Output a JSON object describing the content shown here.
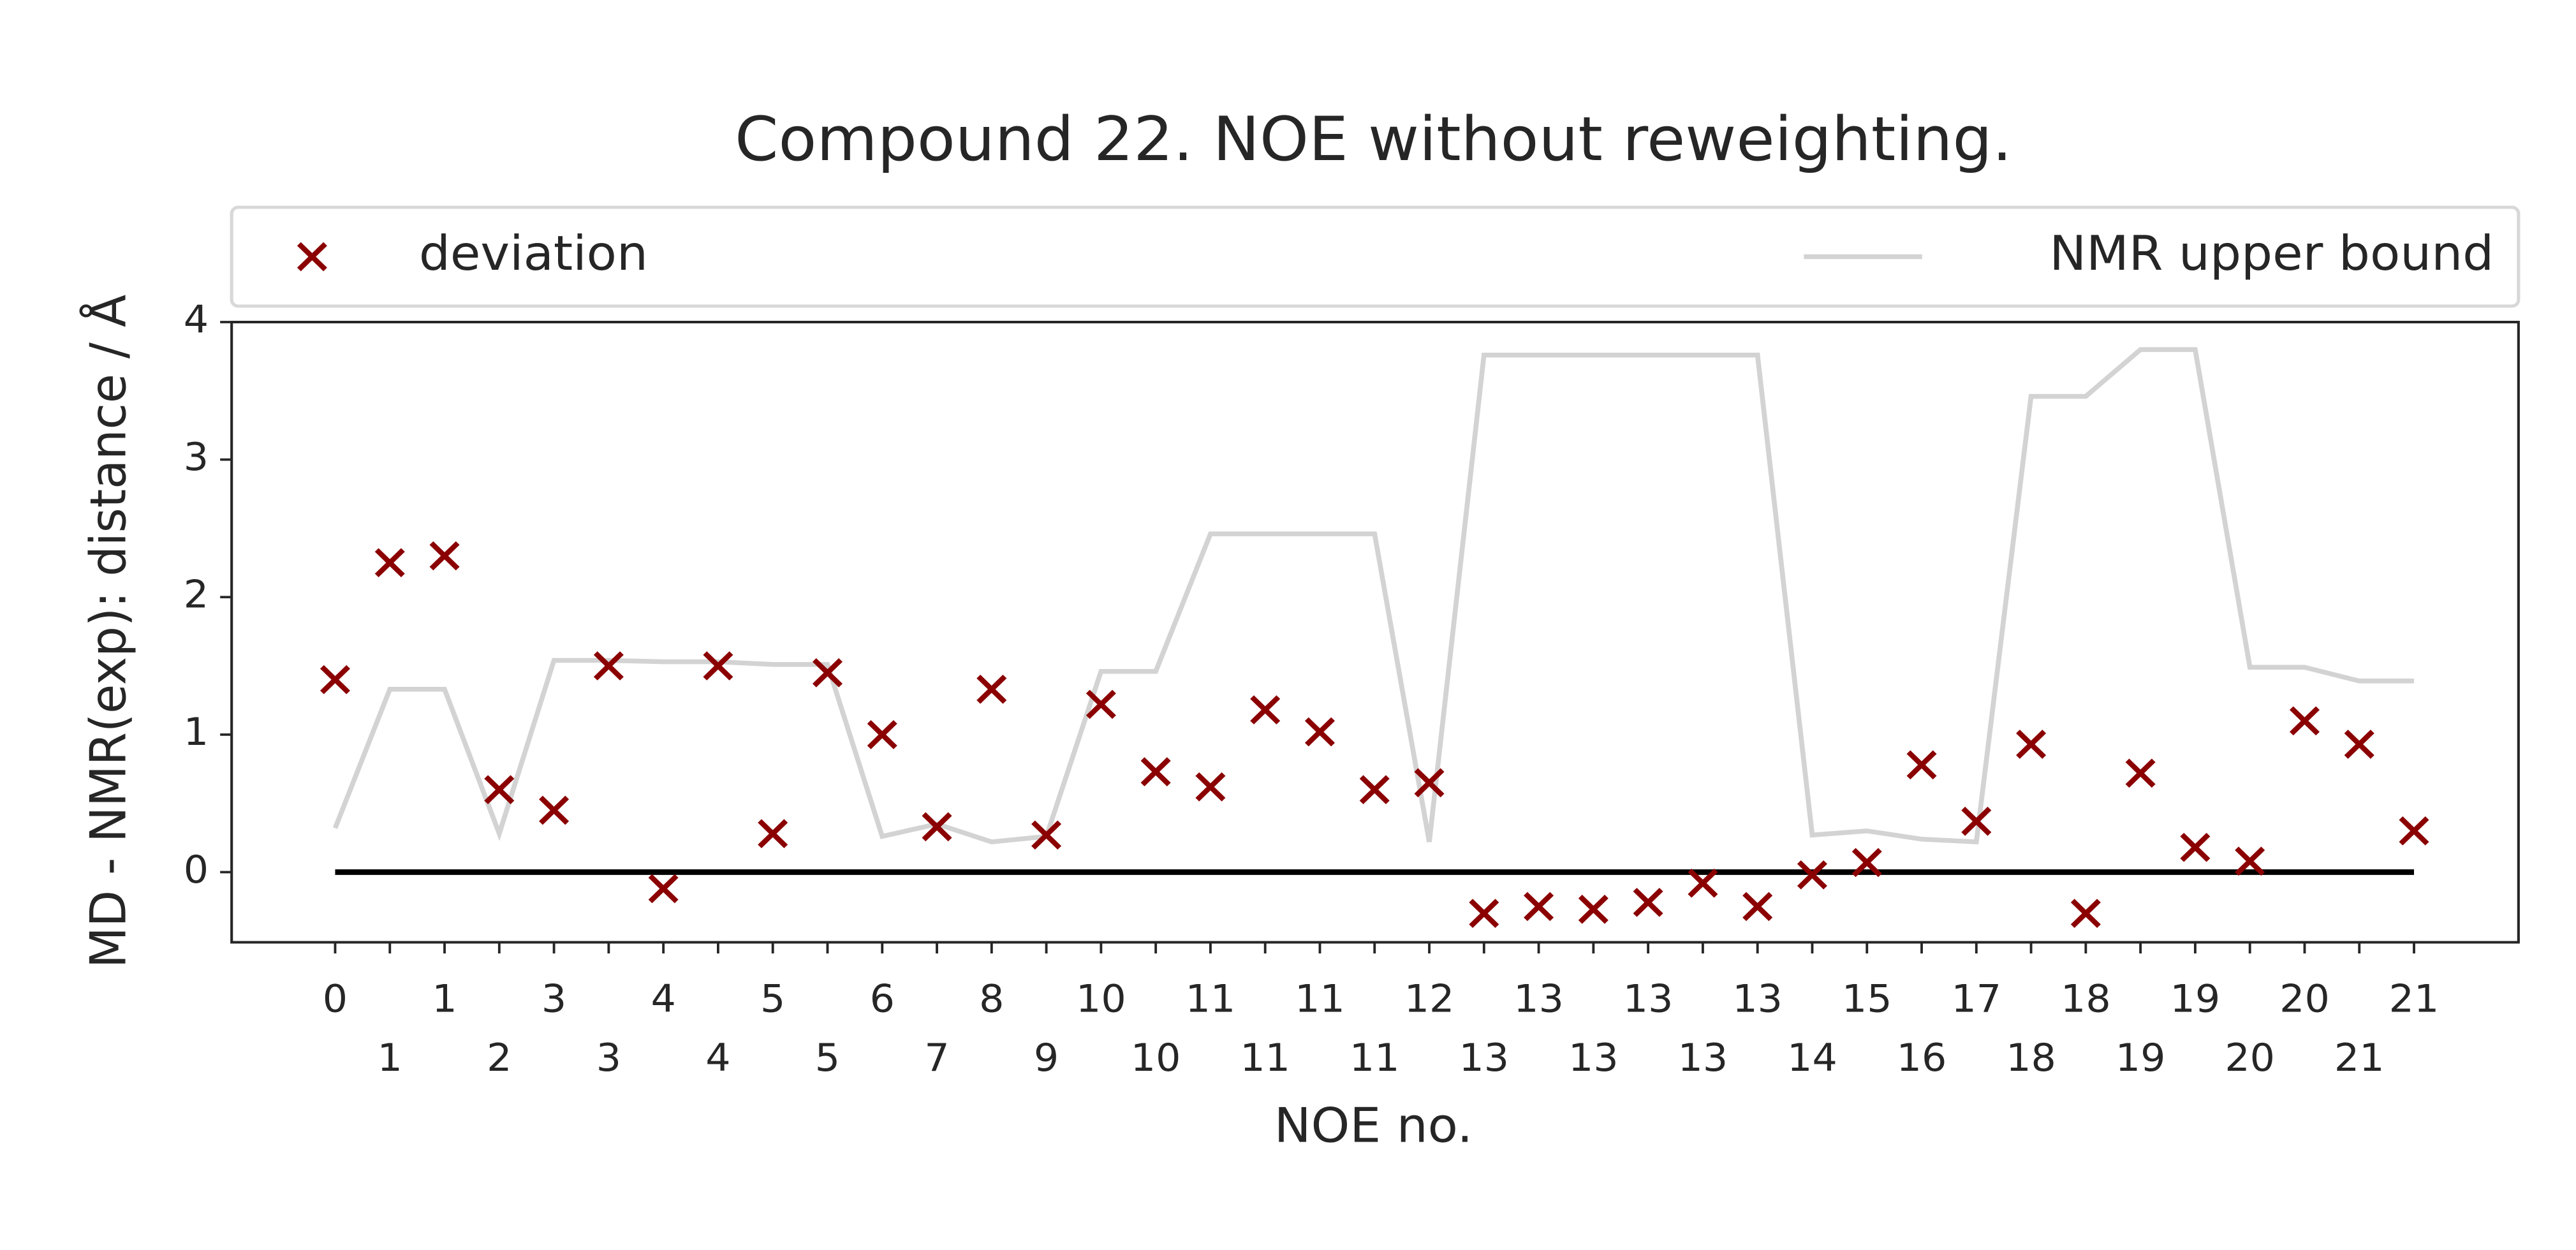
{
  "chart_data": {
    "type": "scatter",
    "title": "Compound 22. NOE without reweighting.",
    "xlabel": "NOE no.",
    "ylabel": "MD - NMR(exp): distance / Å",
    "categories": [
      "0",
      "1",
      "1",
      "2",
      "3",
      "3",
      "4",
      "4",
      "5",
      "5",
      "6",
      "7",
      "8",
      "9",
      "10",
      "10",
      "11",
      "11",
      "11",
      "11",
      "12",
      "13",
      "13",
      "13",
      "13",
      "13",
      "13",
      "14",
      "15",
      "16",
      "17",
      "18",
      "18",
      "19",
      "19",
      "20",
      "20",
      "21",
      "21"
    ],
    "series": [
      {
        "name": "deviation",
        "color": "#8b0000",
        "marker": "x",
        "values": [
          1.4,
          2.25,
          2.3,
          0.6,
          0.45,
          1.5,
          -0.12,
          1.5,
          0.28,
          1.45,
          1.0,
          0.33,
          1.33,
          0.27,
          1.22,
          0.73,
          0.62,
          1.18,
          1.02,
          0.6,
          0.65,
          -0.3,
          -0.25,
          -0.27,
          -0.22,
          -0.08,
          -0.25,
          -0.02,
          0.07,
          0.78,
          0.37,
          0.93,
          -0.3,
          0.72,
          0.18,
          0.08,
          1.1,
          0.93,
          0.3
        ]
      },
      {
        "name": "NMR upper bound",
        "color": "#d3d3d3",
        "marker": "line",
        "values": [
          0.32,
          1.33,
          1.33,
          0.28,
          1.54,
          1.54,
          1.53,
          1.53,
          1.51,
          1.51,
          0.26,
          0.35,
          0.22,
          0.26,
          1.46,
          1.46,
          2.46,
          2.46,
          2.46,
          2.46,
          0.22,
          3.76,
          3.76,
          3.76,
          3.76,
          3.76,
          3.76,
          0.27,
          0.3,
          0.24,
          0.22,
          3.46,
          3.46,
          3.8,
          3.8,
          1.49,
          1.49,
          1.39,
          1.39
        ]
      }
    ],
    "ylim": [
      -0.51,
      4
    ],
    "yticks": [
      0,
      1,
      2,
      3,
      4
    ],
    "zero_line": true,
    "legend": "top"
  }
}
